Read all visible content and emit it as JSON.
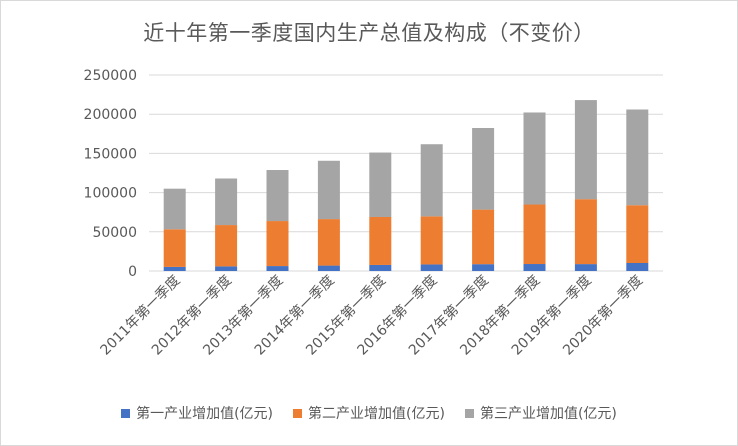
{
  "chart_data": {
    "type": "bar",
    "stacked": true,
    "title": "近十年第一季度国内生产总值及构成（不变价）",
    "categories": [
      "2011年第一季度",
      "2012年第一季度",
      "2013年第一季度",
      "2014年第一季度",
      "2015年第一季度",
      "2016年第一季度",
      "2017年第一季度",
      "2018年第一季度",
      "2019年第一季度",
      "2020年第一季度"
    ],
    "series": [
      {
        "name": "第一产业增加值(亿元)",
        "color": "#4472c4",
        "values": [
          5200,
          5900,
          6300,
          6900,
          7700,
          8400,
          8700,
          8900,
          8800,
          10200
        ]
      },
      {
        "name": "第二产业增加值(亿元)",
        "color": "#ed7d31",
        "values": [
          48000,
          52700,
          57400,
          59300,
          61200,
          61300,
          69600,
          75900,
          82800,
          73700
        ]
      },
      {
        "name": "第三产业增加值(亿元)",
        "color": "#a5a5a5",
        "values": [
          51800,
          59400,
          65100,
          74400,
          82200,
          92000,
          104100,
          117400,
          126400,
          122100
        ]
      }
    ],
    "ylim": [
      0,
      250000
    ],
    "yticks": [
      0,
      50000,
      100000,
      150000,
      200000,
      250000
    ],
    "ytick_labels": [
      "0",
      "50000",
      "100000",
      "150000",
      "200000",
      "250000"
    ],
    "grid": true,
    "legend_position": "bottom",
    "xlabel": "",
    "ylabel": ""
  }
}
